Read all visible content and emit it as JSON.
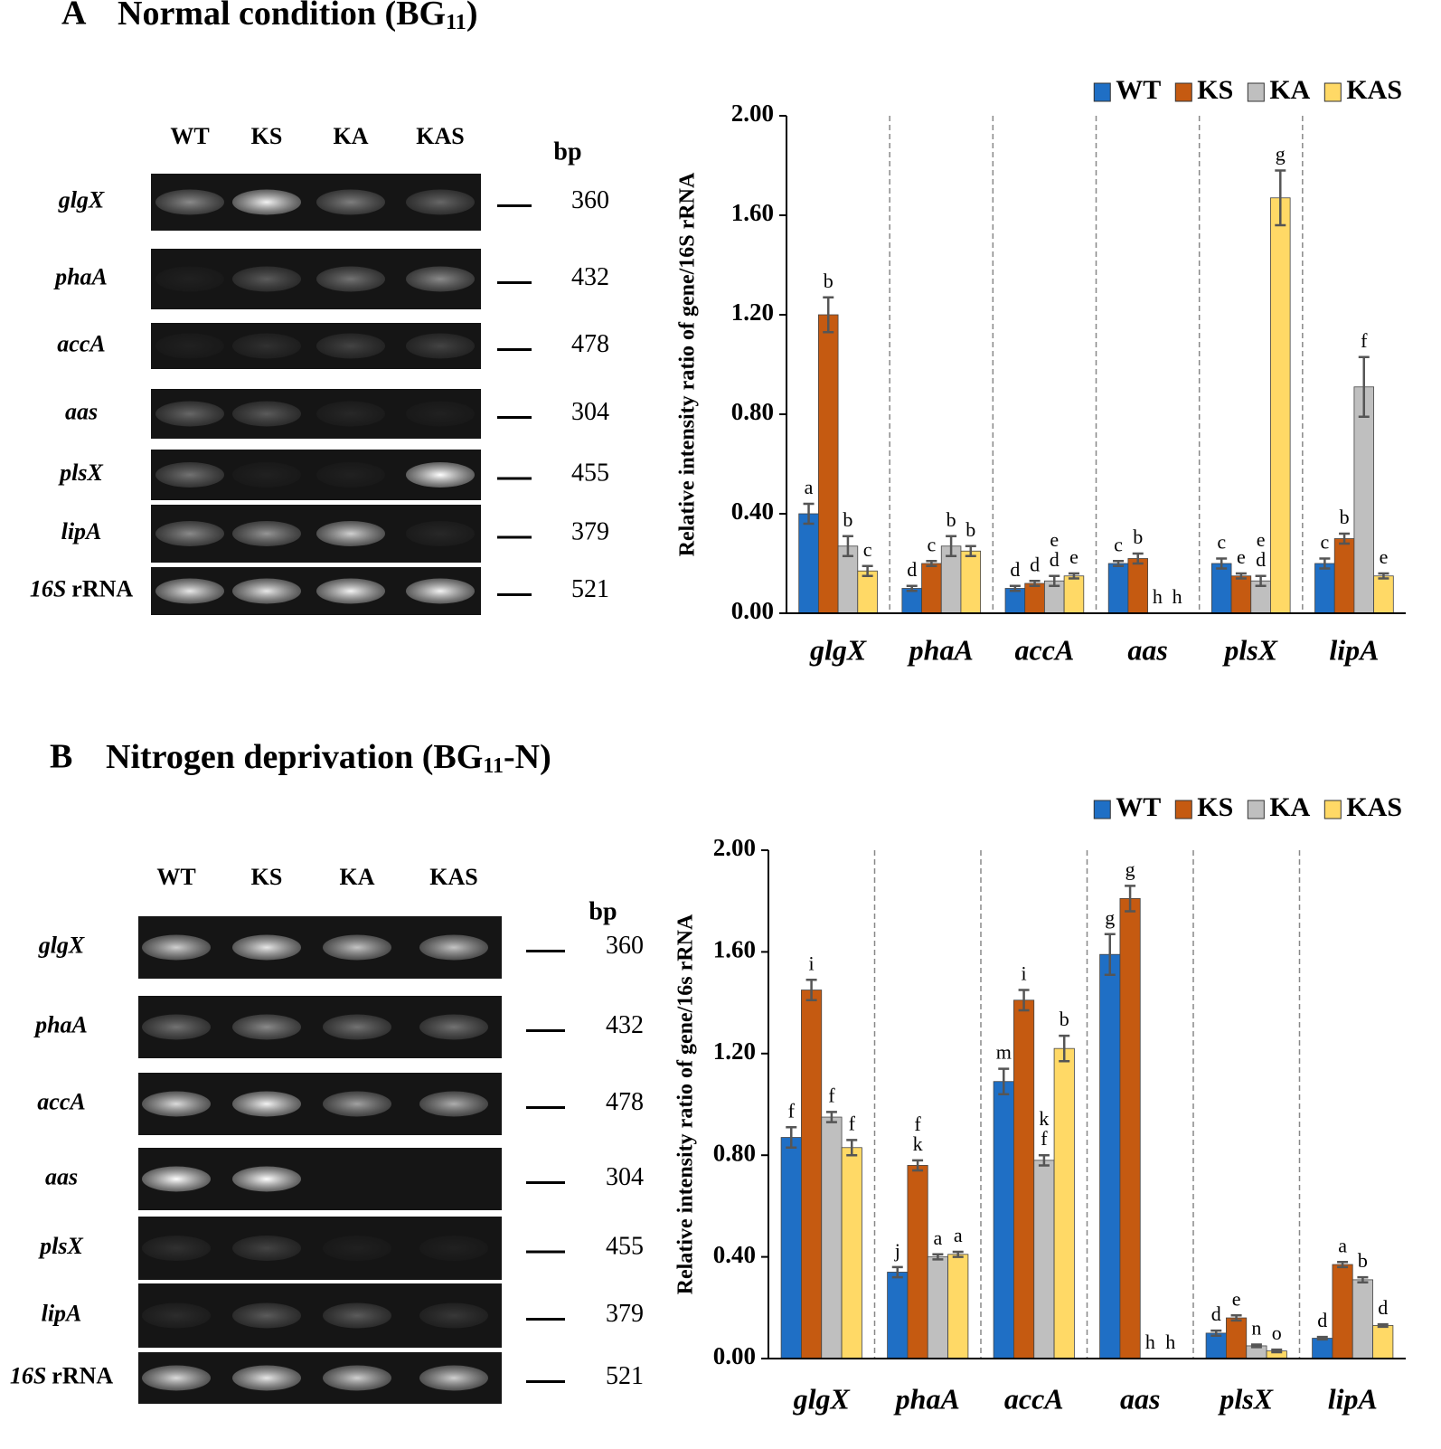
{
  "panels": [
    {
      "label": "A",
      "title": "Normal condition (BG",
      "title_sub": "11",
      "title_tail": ")"
    },
    {
      "label": "B",
      "title": "Nitrogen deprivation (BG",
      "title_sub": "11",
      "title_tail": "-N)"
    }
  ],
  "gels": [
    {
      "lanes": [
        "WT",
        "KS",
        "KA",
        "KAS"
      ],
      "unit": "bp",
      "genes": [
        "glgX",
        "phaA",
        "accA",
        "aas",
        "plsX",
        "lipA"
      ],
      "reference": {
        "gene": "16S",
        "suffix": "rRNA"
      },
      "sizes": [
        360,
        432,
        478,
        304,
        455,
        379,
        521
      ]
    },
    {
      "lanes": [
        "WT",
        "KS",
        "KA",
        "KAS"
      ],
      "unit": "bp",
      "genes": [
        "glgX",
        "phaA",
        "accA",
        "aas",
        "plsX",
        "lipA"
      ],
      "reference": {
        "gene": "16S",
        "suffix": "rRNA"
      },
      "sizes": [
        360,
        432,
        478,
        304,
        455,
        379,
        521
      ]
    }
  ],
  "chart_data": [
    {
      "type": "bar",
      "ylabel": "Relative intensity ratio of gene/16S rRNA",
      "categories": [
        "glgX",
        "phaA",
        "accA",
        "aas",
        "plsX",
        "lipA"
      ],
      "series": [
        {
          "name": "WT",
          "color": "#1f6fc5",
          "values": [
            0.4,
            0.1,
            0.1,
            0.2,
            0.2,
            0.2
          ],
          "errors": [
            0.04,
            0.01,
            0.01,
            0.01,
            0.02,
            0.02
          ],
          "letters": [
            "a",
            "d",
            "d",
            "c",
            "c",
            "c"
          ]
        },
        {
          "name": "KS",
          "color": "#c55a11",
          "values": [
            1.2,
            0.2,
            0.12,
            0.22,
            0.15,
            0.3
          ],
          "errors": [
            0.07,
            0.01,
            0.01,
            0.02,
            0.01,
            0.02
          ],
          "letters": [
            "b",
            "c",
            "d",
            "b",
            "e",
            "b"
          ]
        },
        {
          "name": "KA",
          "color": "#bfbfbf",
          "values": [
            0.27,
            0.27,
            0.13,
            0,
            0.13,
            0.91
          ],
          "errors": [
            0.04,
            0.04,
            0.02,
            0,
            0.02,
            0.12
          ],
          "letters": [
            "b",
            "b",
            [
              "e",
              "d"
            ],
            "h",
            [
              "e",
              "d"
            ],
            "f"
          ]
        },
        {
          "name": "KAS",
          "color": "#ffd966",
          "values": [
            0.17,
            0.25,
            0.15,
            0,
            1.67,
            0.15
          ],
          "errors": [
            0.02,
            0.02,
            0.01,
            0,
            0.11,
            0.01
          ],
          "letters": [
            "c",
            "b",
            "e",
            "h",
            "g",
            "e"
          ]
        }
      ],
      "ylim": [
        0,
        2
      ],
      "yticks": [
        {
          "value": 0,
          "label": "0.00"
        },
        {
          "value": 0.4,
          "label": "0.40"
        },
        {
          "value": 0.8,
          "label": "0.80"
        },
        {
          "value": 1.2,
          "label": "1.20"
        },
        {
          "value": 1.6,
          "label": "1.60"
        },
        {
          "value": 2,
          "label": "2.00"
        }
      ],
      "grid": true,
      "legend": "top-right"
    },
    {
      "type": "bar",
      "ylabel": "Relative intensity ratio of gene/16s rRNA",
      "categories": [
        "glgX",
        "phaA",
        "accA",
        "aas",
        "plsX",
        "lipA"
      ],
      "series": [
        {
          "name": "WT",
          "color": "#1f6fc5",
          "values": [
            0.87,
            0.34,
            1.09,
            1.59,
            0.1,
            0.08
          ],
          "errors": [
            0.04,
            0.02,
            0.05,
            0.08,
            0.01,
            0.005
          ],
          "letters": [
            "f",
            "j",
            "m",
            "g",
            "d",
            "d"
          ]
        },
        {
          "name": "KS",
          "color": "#c55a11",
          "values": [
            1.45,
            0.76,
            1.41,
            1.81,
            0.16,
            0.37
          ],
          "errors": [
            0.04,
            0.02,
            0.04,
            0.05,
            0.01,
            0.01
          ],
          "letters": [
            "i",
            [
              "f",
              "k"
            ],
            "i",
            "g",
            "e",
            "a"
          ]
        },
        {
          "name": "KA",
          "color": "#bfbfbf",
          "values": [
            0.95,
            0.4,
            0.78,
            0,
            0.05,
            0.31
          ],
          "errors": [
            0.02,
            0.01,
            0.02,
            0,
            0.005,
            0.01
          ],
          "letters": [
            "f",
            "a",
            [
              "k",
              "f"
            ],
            "h",
            "n",
            "b"
          ]
        },
        {
          "name": "KAS",
          "color": "#ffd966",
          "values": [
            0.83,
            0.41,
            1.22,
            0,
            0.03,
            0.13
          ],
          "errors": [
            0.03,
            0.01,
            0.05,
            0,
            0.005,
            0.005
          ],
          "letters": [
            "f",
            "a",
            "b",
            "h",
            "o",
            "d"
          ]
        }
      ],
      "ylim": [
        0,
        2
      ],
      "yticks": [
        {
          "value": 0,
          "label": "0.00"
        },
        {
          "value": 0.4,
          "label": "0.40"
        },
        {
          "value": 0.8,
          "label": "0.80"
        },
        {
          "value": 1.2,
          "label": "1.20"
        },
        {
          "value": 1.6,
          "label": "1.60"
        },
        {
          "value": 2,
          "label": "2.00"
        }
      ],
      "grid": true,
      "legend": "top-right"
    }
  ]
}
